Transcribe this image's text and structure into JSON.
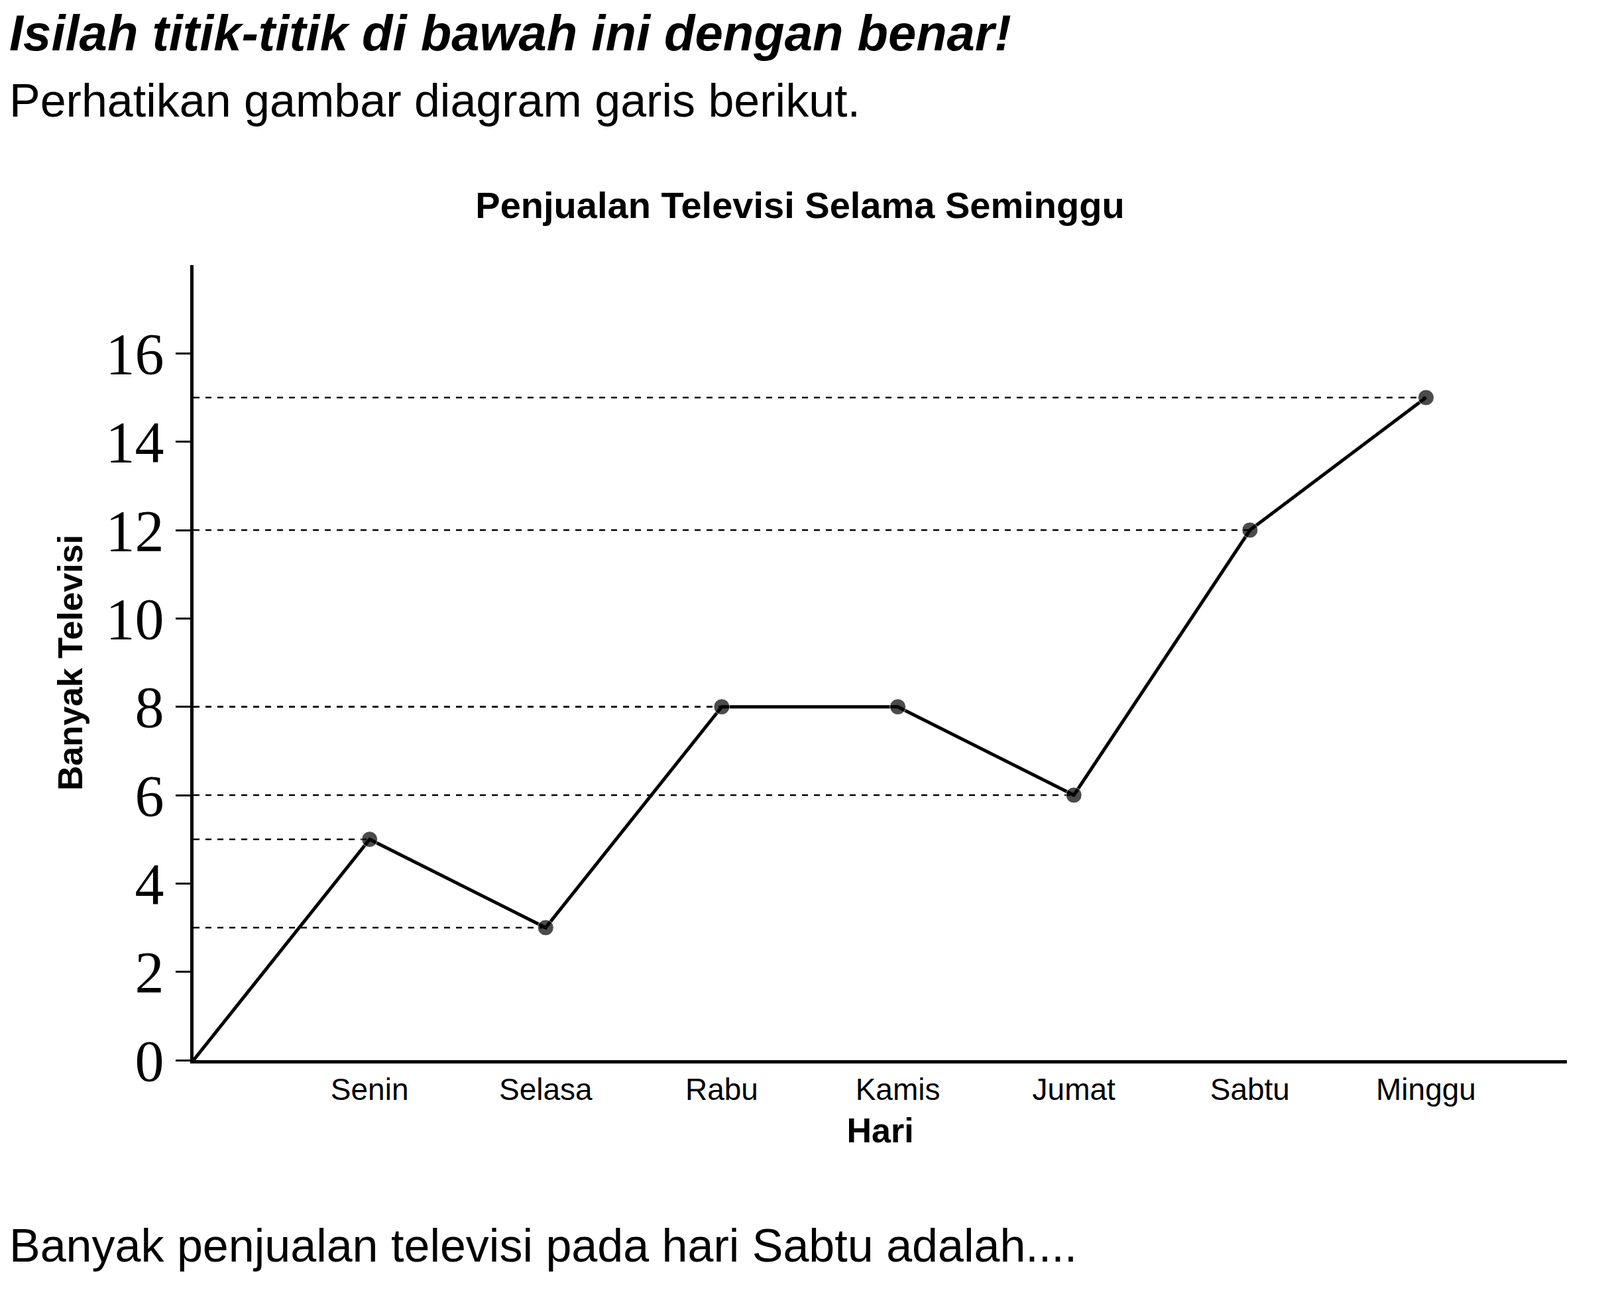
{
  "header": {
    "instruction": "Isilah titik-titik di bawah ini dengan benar!",
    "intro": "Perhatikan gambar diagram garis berikut."
  },
  "chart_data": {
    "type": "line",
    "title": "Penjualan Televisi Selama Seminggu",
    "x_label": "Hari",
    "y_label": "Banyak Televisi",
    "categories": [
      null,
      "Senin",
      "Selasa",
      "Rabu",
      "Kamis",
      "Jumat",
      "Sabtu",
      "Minggu"
    ],
    "values": [
      0,
      5,
      3,
      8,
      8,
      6,
      12,
      15
    ],
    "color": "#000000",
    "marker": "circle",
    "ylim": [
      0,
      18
    ],
    "yticks": [
      0,
      2,
      4,
      6,
      8,
      10,
      12,
      14,
      16
    ],
    "grid": false
  },
  "question": "Banyak penjualan televisi pada hari Sabtu adalah...."
}
